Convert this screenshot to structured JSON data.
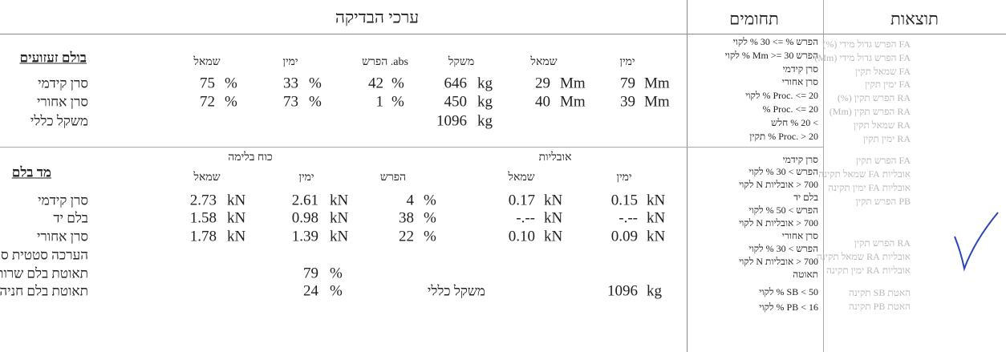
{
  "header": {
    "title": "ערכי הבדיקה",
    "ranges_title": "תחומים",
    "results_title": "תוצאות"
  },
  "shock": {
    "title": "בולם זעזועים",
    "headers": [
      "שמאל",
      "ימין",
      "abs. הפרש",
      "משקל",
      "שמאל",
      "ימין"
    ],
    "rows": [
      {
        "label": "סרן קידמי",
        "cells": [
          [
            "75",
            "%"
          ],
          [
            "33",
            "%"
          ],
          [
            "42",
            "%"
          ],
          [
            "646",
            "kg"
          ],
          [
            "29",
            "Mm"
          ],
          [
            "79",
            "Mm"
          ]
        ]
      },
      {
        "label": "סרן אחורי",
        "cells": [
          [
            "72",
            "%"
          ],
          [
            "73",
            "%"
          ],
          [
            "1",
            "%"
          ],
          [
            "450",
            "kg"
          ],
          [
            "40",
            "Mm"
          ],
          [
            "39",
            "Mm"
          ]
        ]
      }
    ],
    "total": {
      "label": "משקל כללי",
      "value": "1096",
      "unit": "kg"
    }
  },
  "brake": {
    "title": "מד בלם",
    "groups": [
      "כוח בלימה",
      "אובליות"
    ],
    "headers": [
      "שמאל",
      "ימין",
      "הפרש",
      "שמאל",
      "ימין"
    ],
    "rows": [
      {
        "label": "סרן קידמי",
        "cells": [
          [
            "2.73",
            "kN"
          ],
          [
            "2.61",
            "kN"
          ],
          [
            "4",
            "%"
          ],
          [
            "0.17",
            "kN"
          ],
          [
            "0.15",
            "kN"
          ]
        ]
      },
      {
        "label": "בלם יד",
        "cells": [
          [
            "1.58",
            "kN"
          ],
          [
            "0.98",
            "kN"
          ],
          [
            "38",
            "%"
          ],
          [
            "-.--",
            "kN"
          ],
          [
            "-.--",
            "kN"
          ]
        ]
      },
      {
        "label": "סרן אחורי",
        "cells": [
          [
            "1.78",
            "kN"
          ],
          [
            "1.39",
            "kN"
          ],
          [
            "22",
            "%"
          ],
          [
            "0.10",
            "kN"
          ],
          [
            "0.09",
            "kN"
          ]
        ]
      }
    ],
    "final_label": "הערכה סטטית סופית",
    "decel": [
      {
        "label": "תאוטת בלם שרות",
        "value": "79",
        "unit": "%"
      },
      {
        "label": "תאוטת בלם חניה",
        "value": "24",
        "unit": "%"
      }
    ],
    "total": {
      "label": "משקל כללי",
      "value": "1096",
      "unit": "kg"
    }
  },
  "ranges": {
    "top": [
      "הפרש % => 30 % לקוי",
      "הפרש Mm >= 30 % לקוי",
      "סרן קידמי",
      "סרן אחורי",
      "Proc. <= 20 % לקוי",
      "Proc. <= 20 %",
      "> 20 % חלש",
      "Proc. > 20 % תקין"
    ],
    "bottom": [
      "סרן קידמי",
      "הפרש > 30 % לקוי",
      "700 < אובליות N לקוי",
      "בלם יד",
      "הפרש > 50 % לקוי",
      "700 < אובליות N לקוי",
      "סרן אחורי",
      "הפרש > 30 % לקוי",
      "700 < אובליות N לקוי",
      "תאוטה",
      "SB < 50 % לקוי",
      "PB < 16 % לקוי"
    ]
  },
  "results": {
    "groups": [
      [
        "FA הפרש גדול מידי (%)",
        "FA הפרש גדול מידי (Mm)",
        "FA שמאל תקין",
        "FA ימין תקין",
        "RA הפרש תקין (%)",
        "RA הפרש תקין (Mm)",
        "RA שמאל תקין",
        "RA ימין תקין"
      ],
      [
        "FA הפרש תקין",
        "אובליות FA שמאל תקינה",
        "אובליות FA ימין תקינה",
        "PB הפרש תקין"
      ],
      [
        "RA הפרש תקין",
        "אובליות RA שמאל תקינה",
        "אובליות RA ימין תקינה"
      ],
      [
        "האטת SB תקינה",
        "האטת PB תקינה"
      ]
    ]
  }
}
